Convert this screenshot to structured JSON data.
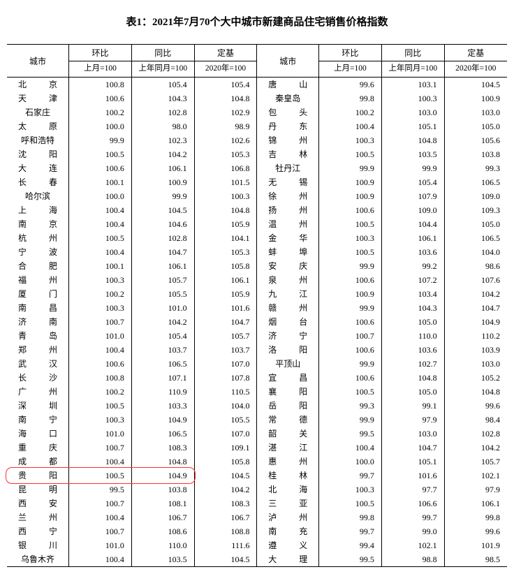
{
  "title": "表1：2021年7月70个大中城市新建商品住宅销售价格指数",
  "headers": {
    "city": "城市",
    "mom": "环比",
    "yoy": "同比",
    "fixed": "定基",
    "mom_sub": "上月=100",
    "yoy_sub": "上年同月=100",
    "fixed_sub": "2020年=100"
  },
  "highlight": {
    "row_index": 28,
    "color": "#ff3030"
  },
  "left": [
    {
      "city": "北京",
      "mom": "100.8",
      "yoy": "105.4",
      "fixed": "105.4"
    },
    {
      "city": "天津",
      "mom": "100.6",
      "yoy": "104.3",
      "fixed": "104.8"
    },
    {
      "city": "石家庄",
      "mom": "100.2",
      "yoy": "102.8",
      "fixed": "102.9"
    },
    {
      "city": "太原",
      "mom": "100.0",
      "yoy": "98.0",
      "fixed": "98.9"
    },
    {
      "city": "呼和浩特",
      "mom": "99.9",
      "yoy": "102.3",
      "fixed": "102.6"
    },
    {
      "city": "沈阳",
      "mom": "100.5",
      "yoy": "104.2",
      "fixed": "105.3"
    },
    {
      "city": "大连",
      "mom": "100.6",
      "yoy": "106.1",
      "fixed": "106.8"
    },
    {
      "city": "长春",
      "mom": "100.1",
      "yoy": "100.9",
      "fixed": "101.5"
    },
    {
      "city": "哈尔滨",
      "mom": "100.0",
      "yoy": "99.9",
      "fixed": "100.3"
    },
    {
      "city": "上海",
      "mom": "100.4",
      "yoy": "104.5",
      "fixed": "104.8"
    },
    {
      "city": "南京",
      "mom": "100.4",
      "yoy": "104.6",
      "fixed": "105.9"
    },
    {
      "city": "杭州",
      "mom": "100.5",
      "yoy": "102.8",
      "fixed": "104.1"
    },
    {
      "city": "宁波",
      "mom": "100.4",
      "yoy": "104.7",
      "fixed": "105.3"
    },
    {
      "city": "合肥",
      "mom": "100.1",
      "yoy": "106.1",
      "fixed": "105.8"
    },
    {
      "city": "福州",
      "mom": "100.3",
      "yoy": "105.7",
      "fixed": "106.1"
    },
    {
      "city": "厦门",
      "mom": "100.2",
      "yoy": "105.5",
      "fixed": "105.9"
    },
    {
      "city": "南昌",
      "mom": "100.3",
      "yoy": "101.0",
      "fixed": "101.6"
    },
    {
      "city": "济南",
      "mom": "100.7",
      "yoy": "104.2",
      "fixed": "104.7"
    },
    {
      "city": "青岛",
      "mom": "101.0",
      "yoy": "105.4",
      "fixed": "105.7"
    },
    {
      "city": "郑州",
      "mom": "100.4",
      "yoy": "103.7",
      "fixed": "103.7"
    },
    {
      "city": "武汉",
      "mom": "100.6",
      "yoy": "106.5",
      "fixed": "107.0"
    },
    {
      "city": "长沙",
      "mom": "100.8",
      "yoy": "107.1",
      "fixed": "107.8"
    },
    {
      "city": "广州",
      "mom": "100.2",
      "yoy": "110.9",
      "fixed": "110.5"
    },
    {
      "city": "深圳",
      "mom": "100.5",
      "yoy": "103.3",
      "fixed": "104.0"
    },
    {
      "city": "南宁",
      "mom": "100.3",
      "yoy": "104.9",
      "fixed": "105.5"
    },
    {
      "city": "海口",
      "mom": "101.0",
      "yoy": "106.5",
      "fixed": "107.0"
    },
    {
      "city": "重庆",
      "mom": "100.7",
      "yoy": "108.3",
      "fixed": "109.1"
    },
    {
      "city": "成都",
      "mom": "100.4",
      "yoy": "104.8",
      "fixed": "105.8"
    },
    {
      "city": "贵阳",
      "mom": "100.5",
      "yoy": "104.9",
      "fixed": "104.5"
    },
    {
      "city": "昆明",
      "mom": "99.5",
      "yoy": "103.8",
      "fixed": "104.2"
    },
    {
      "city": "西安",
      "mom": "100.7",
      "yoy": "108.1",
      "fixed": "108.3"
    },
    {
      "city": "兰州",
      "mom": "100.4",
      "yoy": "106.7",
      "fixed": "106.7"
    },
    {
      "city": "西宁",
      "mom": "100.7",
      "yoy": "108.6",
      "fixed": "108.8"
    },
    {
      "city": "银川",
      "mom": "101.0",
      "yoy": "110.0",
      "fixed": "111.6"
    },
    {
      "city": "乌鲁木齐",
      "mom": "100.4",
      "yoy": "103.5",
      "fixed": "104.5"
    }
  ],
  "right": [
    {
      "city": "唐山",
      "mom": "99.6",
      "yoy": "103.1",
      "fixed": "104.5"
    },
    {
      "city": "秦皇岛",
      "mom": "99.8",
      "yoy": "100.3",
      "fixed": "100.9"
    },
    {
      "city": "包头",
      "mom": "100.2",
      "yoy": "103.0",
      "fixed": "103.0"
    },
    {
      "city": "丹东",
      "mom": "100.4",
      "yoy": "105.1",
      "fixed": "105.0"
    },
    {
      "city": "锦州",
      "mom": "100.3",
      "yoy": "104.8",
      "fixed": "105.6"
    },
    {
      "city": "吉林",
      "mom": "100.5",
      "yoy": "103.5",
      "fixed": "103.8"
    },
    {
      "city": "牡丹江",
      "mom": "99.9",
      "yoy": "99.9",
      "fixed": "99.3"
    },
    {
      "city": "无锡",
      "mom": "100.9",
      "yoy": "105.4",
      "fixed": "106.5"
    },
    {
      "city": "徐州",
      "mom": "100.9",
      "yoy": "107.9",
      "fixed": "109.0"
    },
    {
      "city": "扬州",
      "mom": "100.6",
      "yoy": "109.0",
      "fixed": "109.3"
    },
    {
      "city": "温州",
      "mom": "100.5",
      "yoy": "104.4",
      "fixed": "105.0"
    },
    {
      "city": "金华",
      "mom": "100.3",
      "yoy": "106.1",
      "fixed": "106.5"
    },
    {
      "city": "蚌埠",
      "mom": "100.5",
      "yoy": "103.6",
      "fixed": "104.0"
    },
    {
      "city": "安庆",
      "mom": "99.9",
      "yoy": "99.2",
      "fixed": "98.6"
    },
    {
      "city": "泉州",
      "mom": "100.6",
      "yoy": "107.2",
      "fixed": "107.6"
    },
    {
      "city": "九江",
      "mom": "100.9",
      "yoy": "103.4",
      "fixed": "104.2"
    },
    {
      "city": "赣州",
      "mom": "99.9",
      "yoy": "104.3",
      "fixed": "104.7"
    },
    {
      "city": "烟台",
      "mom": "100.6",
      "yoy": "105.0",
      "fixed": "104.9"
    },
    {
      "city": "济宁",
      "mom": "100.7",
      "yoy": "110.0",
      "fixed": "110.2"
    },
    {
      "city": "洛阳",
      "mom": "100.6",
      "yoy": "103.6",
      "fixed": "103.9"
    },
    {
      "city": "平顶山",
      "mom": "99.9",
      "yoy": "102.7",
      "fixed": "103.0"
    },
    {
      "city": "宜昌",
      "mom": "100.6",
      "yoy": "104.8",
      "fixed": "105.2"
    },
    {
      "city": "襄阳",
      "mom": "100.5",
      "yoy": "105.0",
      "fixed": "104.8"
    },
    {
      "city": "岳阳",
      "mom": "99.3",
      "yoy": "99.1",
      "fixed": "99.6"
    },
    {
      "city": "常德",
      "mom": "99.9",
      "yoy": "97.9",
      "fixed": "98.4"
    },
    {
      "city": "韶关",
      "mom": "99.5",
      "yoy": "103.0",
      "fixed": "102.8"
    },
    {
      "city": "湛江",
      "mom": "100.4",
      "yoy": "104.7",
      "fixed": "104.2"
    },
    {
      "city": "惠州",
      "mom": "100.0",
      "yoy": "105.1",
      "fixed": "105.7"
    },
    {
      "city": "桂林",
      "mom": "99.7",
      "yoy": "101.6",
      "fixed": "102.1"
    },
    {
      "city": "北海",
      "mom": "100.3",
      "yoy": "97.7",
      "fixed": "97.9"
    },
    {
      "city": "三亚",
      "mom": "100.5",
      "yoy": "106.6",
      "fixed": "106.1"
    },
    {
      "city": "泸州",
      "mom": "99.8",
      "yoy": "99.7",
      "fixed": "99.8"
    },
    {
      "city": "南充",
      "mom": "99.7",
      "yoy": "99.0",
      "fixed": "99.6"
    },
    {
      "city": "遵义",
      "mom": "99.4",
      "yoy": "102.1",
      "fixed": "101.9"
    },
    {
      "city": "大理",
      "mom": "99.5",
      "yoy": "98.8",
      "fixed": "98.5"
    }
  ]
}
